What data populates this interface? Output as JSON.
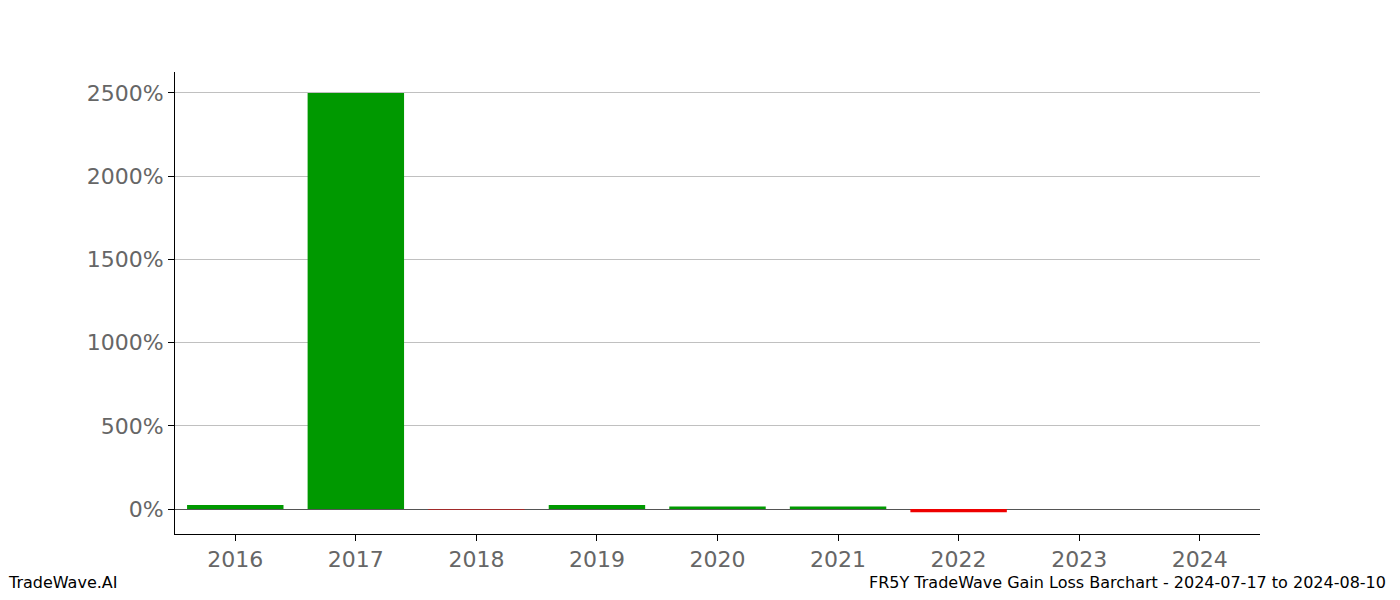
{
  "chart_data": {
    "type": "bar",
    "title": "FR5Y TradeWave Gain Loss Barchart - 2024-07-17 to 2024-08-10",
    "source": "TradeWave.AI",
    "categories": [
      "2016",
      "2017",
      "2018",
      "2019",
      "2020",
      "2021",
      "2022",
      "2023",
      "2024"
    ],
    "values": [
      25,
      2500,
      -3,
      25,
      15,
      15,
      -20,
      0,
      0
    ],
    "colors": [
      "#009900",
      "#009900",
      "#ee0000",
      "#009900",
      "#009900",
      "#009900",
      "#ee0000",
      "#009900",
      "#009900"
    ],
    "ylim": [
      -150,
      2626
    ],
    "yticks": [
      {
        "value": 0,
        "label": "0%"
      },
      {
        "value": 500,
        "label": "500%"
      },
      {
        "value": 1000,
        "label": "1000%"
      },
      {
        "value": 1500,
        "label": "1500%"
      },
      {
        "value": 2000,
        "label": "2000%"
      },
      {
        "value": 2500,
        "label": "2500%"
      }
    ],
    "grid": true
  }
}
